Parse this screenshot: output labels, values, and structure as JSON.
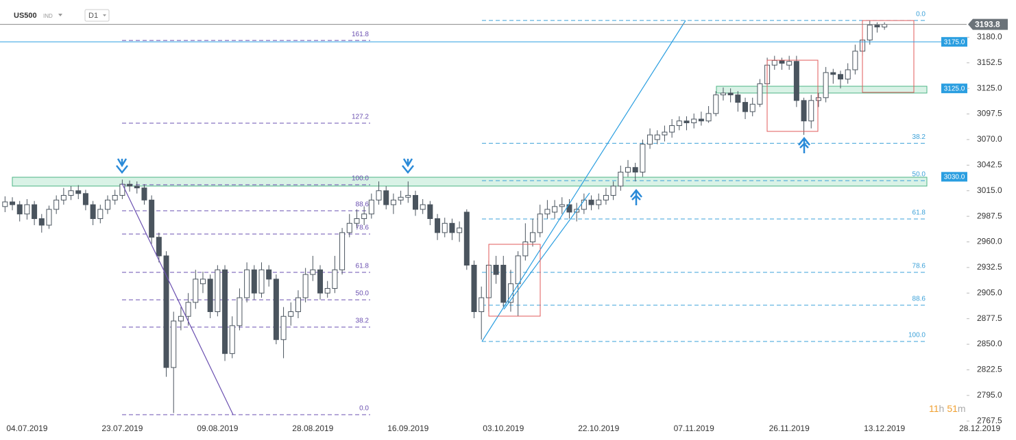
{
  "header": {
    "symbol": "US500",
    "symbol_type": "IND",
    "timeframe": "D1"
  },
  "countdown": [
    "11",
    "h",
    "51",
    "m"
  ],
  "chart_data": {
    "type": "candlestick",
    "categories": [
      null,
      null,
      null,
      "04.07.2019",
      null,
      null,
      null,
      null,
      null,
      null,
      null,
      null,
      null,
      null,
      null,
      null,
      "23.07.2019",
      null,
      null,
      null,
      null,
      null,
      null,
      null,
      null,
      null,
      null,
      null,
      null,
      "09.08.2019",
      null,
      null,
      null,
      null,
      null,
      null,
      null,
      null,
      null,
      null,
      null,
      null,
      "28.08.2019",
      null,
      null,
      null,
      null,
      null,
      null,
      null,
      null,
      null,
      null,
      null,
      null,
      "16.09.2019",
      null,
      null,
      null,
      null,
      null,
      null,
      null,
      null,
      null,
      null,
      null,
      null,
      "03.10.2019",
      null,
      null,
      null,
      null,
      null,
      null,
      null,
      null,
      null,
      null,
      null,
      null,
      "22.10.2019",
      null,
      null,
      null,
      null,
      null,
      null,
      null,
      null,
      null,
      null,
      null,
      null,
      "07.11.2019",
      null,
      null,
      null,
      null,
      null,
      null,
      null,
      null,
      null,
      null,
      null,
      null,
      "26.11.2019",
      null,
      null,
      null,
      null,
      null,
      null,
      null,
      null,
      null,
      null,
      null,
      null,
      "13.12.2019",
      null,
      null,
      null,
      null,
      null,
      null,
      null,
      null,
      null,
      null,
      null,
      null,
      "28.12.2019"
    ],
    "open": [
      2998,
      3003,
      3000,
      2990,
      3000,
      2985,
      2978,
      2995,
      3005,
      3010,
      3015,
      3012,
      3000,
      2985,
      2995,
      3005,
      3010,
      3022,
      3020,
      3018,
      3005,
      2965,
      2945,
      2825,
      2875,
      2880,
      2895,
      2915,
      2920,
      2885,
      2930,
      2840,
      2870,
      2900,
      2930,
      2905,
      2930,
      2920,
      2855,
      2880,
      2885,
      2900,
      2925,
      2930,
      2905,
      2910,
      2930,
      2970,
      2980,
      2985,
      2990,
      3005,
      3015,
      3000,
      3005,
      3008,
      3010,
      2995,
      3000,
      2985,
      2970,
      2980,
      2970,
      2992,
      2935,
      2885,
      2900,
      2935,
      2935,
      2895,
      2915,
      2945,
      2960,
      2970,
      2990,
      2992,
      2998,
      3000,
      2992,
      2995,
      3005,
      3000,
      3005,
      3010,
      3020,
      3035,
      3040,
      3035,
      3065,
      3070,
      3075,
      3078,
      3085,
      3090,
      3088,
      3092,
      3090,
      3098,
      3118,
      3120,
      3118,
      3110,
      3100,
      3108,
      3130,
      3150,
      3155,
      3150,
      3154,
      3112,
      3090,
      3112,
      3115,
      3142,
      3140,
      3135,
      3145,
      3165,
      3177,
      3193,
      3191,
      null,
      null,
      null,
      null,
      null,
      null,
      null,
      null,
      null,
      null,
      null,
      null,
      null
    ],
    "high": [
      3009,
      3008,
      3004,
      3006,
      3004,
      2990,
      2999,
      3010,
      3018,
      3020,
      3021,
      3016,
      3004,
      3000,
      3010,
      3016,
      3027,
      3026,
      3025,
      3022,
      3010,
      2970,
      2950,
      2885,
      2890,
      2905,
      2930,
      2928,
      2925,
      2935,
      2935,
      2880,
      2910,
      2938,
      2935,
      2938,
      2935,
      2925,
      2890,
      2895,
      2908,
      2932,
      2945,
      2935,
      2918,
      2945,
      2975,
      2990,
      2995,
      2998,
      3012,
      3025,
      3020,
      3012,
      3015,
      3025,
      3015,
      3006,
      3004,
      2990,
      2986,
      2985,
      2982,
      2995,
      2940,
      2912,
      2940,
      2945,
      2945,
      2930,
      2950,
      2980,
      2985,
      3000,
      3005,
      3005,
      3008,
      3006,
      3002,
      3012,
      3010,
      3012,
      3018,
      3025,
      3042,
      3048,
      3045,
      3070,
      3082,
      3080,
      3085,
      3092,
      3095,
      3095,
      3098,
      3100,
      3106,
      3122,
      3126,
      3125,
      3122,
      3115,
      3115,
      3135,
      3158,
      3160,
      3158,
      3160,
      3160,
      3115,
      3118,
      3120,
      3148,
      3146,
      3144,
      3152,
      3172,
      3180,
      3198,
      3196,
      3196,
      null,
      null,
      null,
      null,
      null,
      null,
      null,
      null,
      null,
      null,
      null,
      null,
      null
    ],
    "low": [
      2992,
      2994,
      2982,
      2984,
      2978,
      2970,
      2974,
      2990,
      3000,
      3005,
      3006,
      2994,
      2978,
      2980,
      2990,
      3000,
      3006,
      3014,
      3012,
      3000,
      2958,
      2938,
      2815,
      2776,
      2865,
      2870,
      2888,
      2905,
      2878,
      2880,
      2832,
      2835,
      2865,
      2895,
      2898,
      2900,
      2912,
      2850,
      2835,
      2870,
      2878,
      2895,
      2918,
      2898,
      2900,
      2905,
      2925,
      2965,
      2975,
      2978,
      2985,
      3000,
      2995,
      2990,
      3000,
      3002,
      2988,
      2990,
      2978,
      2962,
      2965,
      2962,
      2960,
      2930,
      2878,
      2855,
      2885,
      2915,
      2890,
      2885,
      2880,
      2940,
      2955,
      2965,
      2985,
      2985,
      2990,
      2985,
      2982,
      2990,
      2994,
      2995,
      3000,
      3005,
      3015,
      3030,
      3025,
      3030,
      3060,
      3065,
      3068,
      3072,
      3080,
      3080,
      3082,
      3085,
      3088,
      3095,
      3112,
      3110,
      3100,
      3092,
      3095,
      3105,
      3128,
      3145,
      3145,
      3145,
      3105,
      3075,
      3082,
      3105,
      3110,
      3130,
      3125,
      3130,
      3140,
      3160,
      3172,
      3185,
      3188,
      null,
      null,
      null,
      null,
      null,
      null,
      null,
      null,
      null,
      null,
      null,
      null,
      null
    ],
    "close": [
      3003,
      3000,
      2990,
      3000,
      2985,
      2978,
      2995,
      3005,
      3010,
      3015,
      3012,
      3000,
      2985,
      2995,
      3005,
      3010,
      3022,
      3020,
      3018,
      3005,
      2965,
      2945,
      2825,
      2875,
      2880,
      2895,
      2920,
      2920,
      2885,
      2930,
      2840,
      2870,
      2900,
      2930,
      2905,
      2930,
      2920,
      2855,
      2880,
      2885,
      2900,
      2925,
      2930,
      2905,
      2910,
      2930,
      2970,
      2980,
      2985,
      2990,
      3005,
      3015,
      3000,
      3005,
      3008,
      3010,
      2995,
      3000,
      2985,
      2970,
      2980,
      2970,
      2975,
      2935,
      2885,
      2900,
      2935,
      2925,
      2895,
      2915,
      2945,
      2960,
      2970,
      2990,
      2995,
      2998,
      3000,
      2992,
      2995,
      3005,
      3000,
      3005,
      3010,
      3020,
      3035,
      3040,
      3035,
      3065,
      3075,
      3075,
      3078,
      3085,
      3090,
      3088,
      3092,
      3090,
      3098,
      3118,
      3120,
      3118,
      3110,
      3100,
      3108,
      3130,
      3150,
      3155,
      3152,
      3154,
      3112,
      3090,
      3112,
      3115,
      3142,
      3140,
      3135,
      3145,
      3165,
      3177,
      3193,
      3191,
      3193.8,
      null,
      null,
      null,
      null,
      null,
      null,
      null,
      null,
      null,
      null,
      null,
      null,
      null
    ],
    "up_color": "#ffffff",
    "down_color": "#4a545e",
    "edge_color": "#4a545e",
    "ylim": [
      2764,
      3220
    ],
    "yticks": [
      2767.5,
      {
        "value": 2795,
        "label": "2795.0"
      },
      2822.5,
      {
        "value": 2850,
        "label": "2850.0"
      },
      2877.5,
      {
        "value": 2905,
        "label": "2905.0"
      },
      2932.5,
      {
        "value": 2960,
        "label": "2960.0"
      },
      2987.5,
      {
        "value": 3015,
        "label": "3015.0"
      },
      3042.5,
      {
        "value": 3070,
        "label": "3070.0"
      },
      3097.5,
      {
        "value": 3125,
        "label": "3125.0"
      },
      3152.5,
      {
        "value": 3180,
        "label": "3180.0"
      }
    ],
    "current_price": 3193.8,
    "levels": [
      {
        "value": 3175,
        "label": "3175.0"
      },
      {
        "value": 3125,
        "label": "3125.0"
      },
      {
        "value": 3030,
        "label": "3030.0"
      }
    ],
    "zones": [
      {
        "low": 3020,
        "high": 3029.5
      },
      {
        "low": 3120,
        "high": 3127.3
      }
    ],
    "fib_left": [
      {
        "text": "161.8",
        "price": 3176.5
      },
      {
        "text": "127.2",
        "price": 3087.6
      },
      {
        "text": "100.0",
        "price": 3021.4
      },
      {
        "text": "88.6",
        "price": 2993.5
      },
      {
        "text": "78.6",
        "price": 2968.5
      },
      {
        "text": "61.8",
        "price": 2927.3
      },
      {
        "text": "50.0",
        "price": 2897.8
      },
      {
        "text": "38.2",
        "price": 2868.4
      },
      {
        "text": "0.0",
        "price": 2774.3
      }
    ],
    "fib_right": [
      {
        "text": "0.0",
        "price": 3198
      },
      {
        "text": "38.2",
        "price": 3066
      },
      {
        "text": "50.0",
        "price": 3025.8
      },
      {
        "text": "61.8",
        "price": 2984.6
      },
      {
        "text": "78.6",
        "price": 2927.3
      },
      {
        "text": "88.6",
        "price": 2892
      },
      {
        "text": "100.0",
        "price": 2853
      }
    ]
  }
}
